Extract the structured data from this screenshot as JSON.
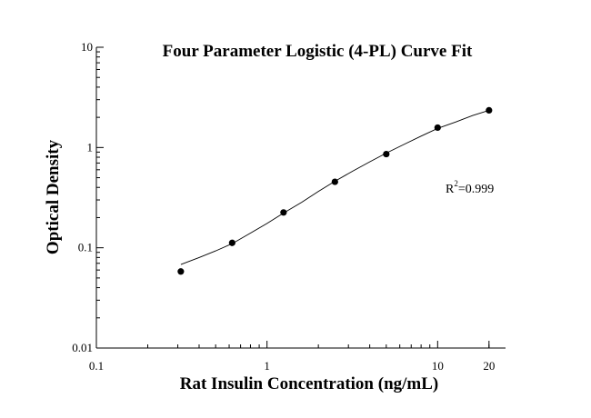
{
  "chart_data": {
    "type": "scatter",
    "title": "Four Parameter Logistic (4-PL) Curve Fit",
    "xlabel": "Rat Insulin Concentration (ng/mL)",
    "ylabel": "Optical Density",
    "x_scale": "log",
    "y_scale": "log",
    "xlim": [
      0.1,
      25
    ],
    "ylim": [
      0.01,
      10
    ],
    "x_ticks": [
      {
        "value": 0.1,
        "label": "0.1"
      },
      {
        "value": 1,
        "label": "1"
      },
      {
        "value": 10,
        "label": "10"
      },
      {
        "value": 20,
        "label": "20"
      }
    ],
    "y_ticks": [
      {
        "value": 0.01,
        "label": "0.01"
      },
      {
        "value": 0.1,
        "label": "0.1"
      },
      {
        "value": 1,
        "label": "1"
      },
      {
        "value": 10,
        "label": "10"
      }
    ],
    "points": [
      {
        "x": 0.3125,
        "y": 0.058
      },
      {
        "x": 0.625,
        "y": 0.112
      },
      {
        "x": 1.25,
        "y": 0.225
      },
      {
        "x": 2.5,
        "y": 0.455
      },
      {
        "x": 5,
        "y": 0.86
      },
      {
        "x": 10,
        "y": 1.58
      },
      {
        "x": 20,
        "y": 2.35
      }
    ],
    "fit_curve": [
      {
        "x": 0.3125,
        "y": 0.068
      },
      {
        "x": 0.4,
        "y": 0.08
      },
      {
        "x": 0.5,
        "y": 0.093
      },
      {
        "x": 0.625,
        "y": 0.11
      },
      {
        "x": 0.8,
        "y": 0.14
      },
      {
        "x": 1.0,
        "y": 0.175
      },
      {
        "x": 1.25,
        "y": 0.222
      },
      {
        "x": 1.6,
        "y": 0.285
      },
      {
        "x": 2.0,
        "y": 0.365
      },
      {
        "x": 2.5,
        "y": 0.46
      },
      {
        "x": 3.2,
        "y": 0.585
      },
      {
        "x": 4.0,
        "y": 0.72
      },
      {
        "x": 5.0,
        "y": 0.88
      },
      {
        "x": 6.4,
        "y": 1.08
      },
      {
        "x": 8.0,
        "y": 1.3
      },
      {
        "x": 10.0,
        "y": 1.55
      },
      {
        "x": 12.8,
        "y": 1.8
      },
      {
        "x": 16.0,
        "y": 2.08
      },
      {
        "x": 20.0,
        "y": 2.35
      }
    ],
    "annotation": {
      "prefix": "R",
      "superscript": "2",
      "suffix": "=0.999"
    },
    "grid": false,
    "legend": "none"
  }
}
